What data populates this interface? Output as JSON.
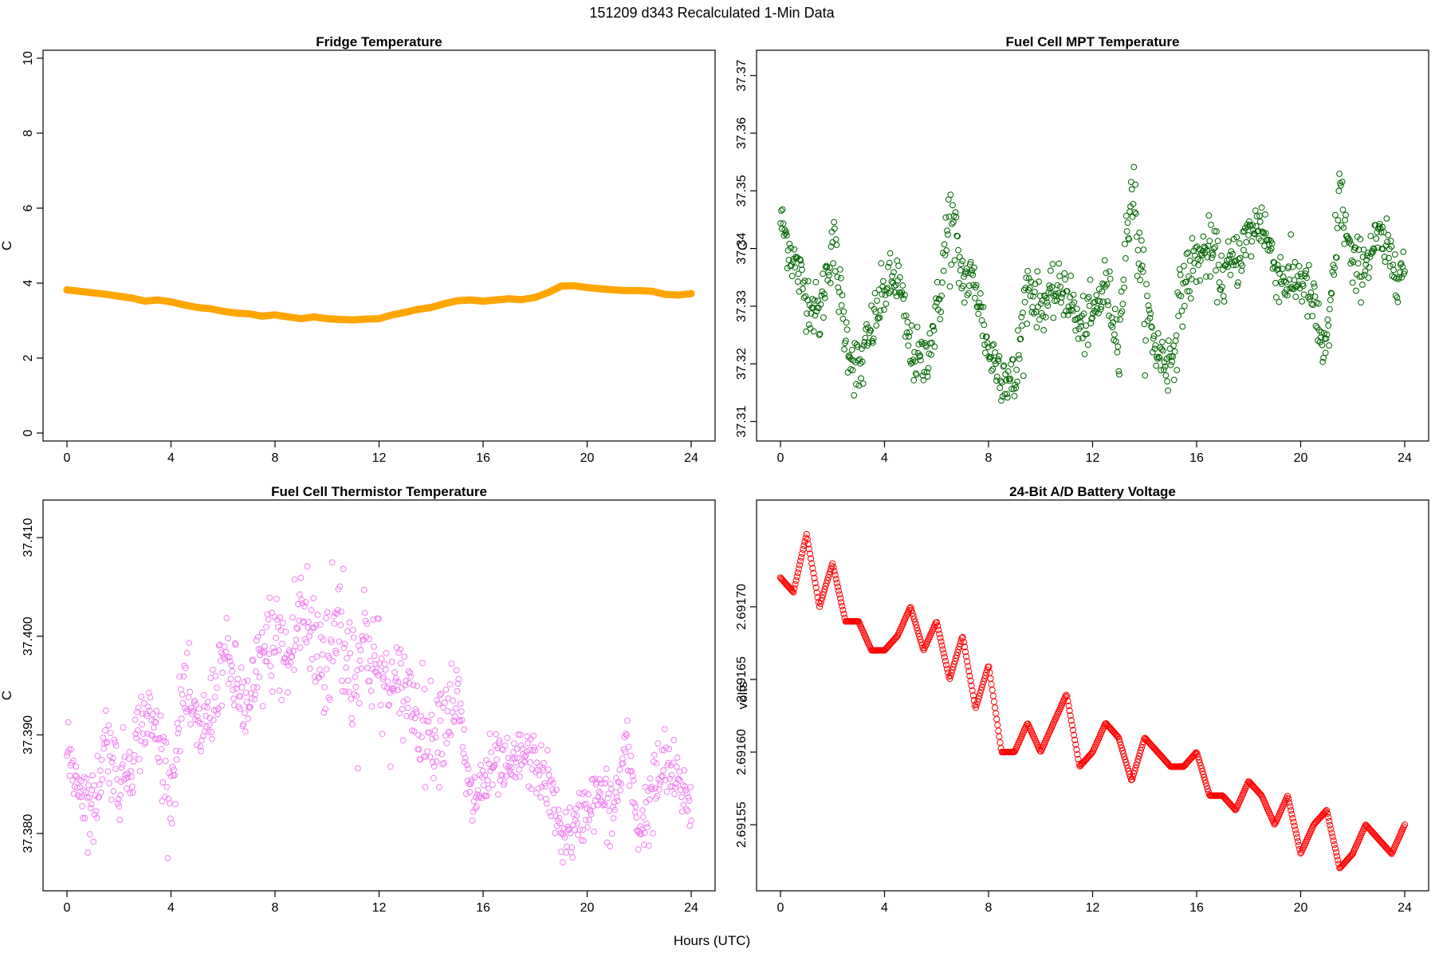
{
  "figure_title": "151209   d343   Recalculated 1-Min Data",
  "shared_xlabel": "Hours (UTC)",
  "chart_data": [
    {
      "type": "line",
      "title": "Fridge Temperature",
      "xlabel": "",
      "ylabel": "C",
      "xlim": [
        0,
        24
      ],
      "ylim": [
        0,
        10
      ],
      "xticks": [
        0,
        4,
        8,
        12,
        16,
        20,
        24
      ],
      "yticks": [
        0,
        2,
        4,
        6,
        8,
        10
      ],
      "ytick_labels": [
        "0",
        "2",
        "4",
        "6",
        "8",
        "10"
      ],
      "series": [
        {
          "color": "#FFA500",
          "marker": "thick-line",
          "x": [
            0.0,
            0.5,
            1.0,
            1.5,
            2.0,
            2.5,
            3.0,
            3.5,
            4.0,
            4.5,
            5.0,
            5.5,
            6.0,
            6.5,
            7.0,
            7.5,
            8.0,
            8.5,
            9.0,
            9.5,
            10.0,
            10.5,
            11.0,
            11.5,
            12.0,
            12.5,
            13.0,
            13.5,
            14.0,
            14.5,
            15.0,
            15.5,
            16.0,
            16.5,
            17.0,
            17.5,
            18.0,
            18.5,
            19.0,
            19.5,
            20.0,
            20.5,
            21.0,
            21.5,
            22.0,
            22.5,
            23.0,
            23.5,
            24.0
          ],
          "y": [
            3.82,
            3.78,
            3.74,
            3.7,
            3.65,
            3.6,
            3.52,
            3.55,
            3.5,
            3.42,
            3.35,
            3.32,
            3.25,
            3.2,
            3.18,
            3.12,
            3.15,
            3.1,
            3.05,
            3.1,
            3.05,
            3.03,
            3.02,
            3.04,
            3.05,
            3.15,
            3.22,
            3.3,
            3.35,
            3.45,
            3.53,
            3.55,
            3.52,
            3.55,
            3.58,
            3.56,
            3.62,
            3.75,
            3.92,
            3.93,
            3.88,
            3.85,
            3.82,
            3.8,
            3.8,
            3.78,
            3.7,
            3.68,
            3.72
          ]
        }
      ]
    },
    {
      "type": "scatter",
      "title": "Fuel Cell MPT Temperature",
      "xlabel": "",
      "ylabel": "C",
      "xlim": [
        0,
        24
      ],
      "ylim": [
        37.308,
        37.373
      ],
      "xticks": [
        0,
        4,
        8,
        12,
        16,
        20,
        24
      ],
      "yticks": [
        37.31,
        37.32,
        37.33,
        37.34,
        37.35,
        37.36,
        37.37
      ],
      "ytick_labels": [
        "37.31",
        "37.32",
        "37.33",
        "37.34",
        "37.35",
        "37.36",
        "37.37"
      ],
      "series": [
        {
          "color": "#006400",
          "marker": "open-circle",
          "x": [
            0.0,
            0.5,
            1.0,
            1.5,
            2.0,
            2.5,
            3.0,
            3.5,
            4.0,
            4.5,
            5.0,
            5.5,
            6.0,
            6.5,
            7.0,
            7.5,
            8.0,
            8.5,
            9.0,
            9.5,
            10.0,
            10.5,
            11.0,
            11.5,
            12.0,
            12.5,
            13.0,
            13.5,
            14.0,
            14.5,
            15.0,
            15.5,
            16.0,
            16.5,
            17.0,
            17.5,
            18.0,
            18.5,
            19.0,
            19.5,
            20.0,
            20.5,
            21.0,
            21.5,
            22.0,
            22.5,
            23.0,
            23.5,
            24.0
          ],
          "y": [
            37.345,
            37.338,
            37.332,
            37.328,
            37.342,
            37.325,
            37.318,
            37.326,
            37.333,
            37.335,
            37.322,
            37.32,
            37.328,
            37.345,
            37.335,
            37.334,
            37.322,
            37.319,
            37.316,
            37.334,
            37.33,
            37.332,
            37.333,
            37.326,
            37.328,
            37.334,
            37.324,
            37.352,
            37.33,
            37.322,
            37.32,
            37.334,
            37.338,
            37.34,
            37.335,
            37.338,
            37.342,
            37.345,
            37.337,
            37.334,
            37.335,
            37.33,
            37.32,
            37.35,
            37.336,
            37.338,
            37.342,
            37.338,
            37.336
          ],
          "spread": [
            0.004,
            0.005,
            0.005,
            0.005,
            0.006,
            0.005,
            0.006,
            0.005,
            0.005,
            0.005,
            0.005,
            0.005,
            0.005,
            0.01,
            0.005,
            0.005,
            0.005,
            0.005,
            0.006,
            0.006,
            0.004,
            0.004,
            0.005,
            0.005,
            0.005,
            0.005,
            0.005,
            0.007,
            0.007,
            0.005,
            0.006,
            0.006,
            0.005,
            0.005,
            0.005,
            0.005,
            0.005,
            0.005,
            0.005,
            0.005,
            0.005,
            0.005,
            0.007,
            0.006,
            0.005,
            0.005,
            0.004,
            0.005,
            0.005
          ]
        }
      ]
    },
    {
      "type": "scatter",
      "title": "Fuel Cell Thermistor Temperature",
      "xlabel": "",
      "ylabel": "C",
      "xlim": [
        0,
        24
      ],
      "ylim": [
        37.375,
        37.413
      ],
      "xticks": [
        0,
        4,
        8,
        12,
        16,
        20,
        24
      ],
      "yticks": [
        37.38,
        37.39,
        37.4,
        37.41
      ],
      "ytick_labels": [
        "37.380",
        "37.390",
        "37.400",
        "37.410"
      ],
      "series": [
        {
          "color": "#EE82EE",
          "marker": "open-circle",
          "x": [
            0.0,
            0.5,
            1.0,
            1.5,
            2.0,
            2.5,
            3.0,
            3.5,
            4.0,
            4.5,
            5.0,
            5.5,
            6.0,
            6.5,
            7.0,
            7.5,
            8.0,
            8.5,
            9.0,
            9.5,
            10.0,
            10.5,
            11.0,
            11.5,
            12.0,
            12.5,
            13.0,
            13.5,
            14.0,
            14.5,
            15.0,
            15.5,
            16.0,
            16.5,
            17.0,
            17.5,
            18.0,
            18.5,
            19.0,
            19.5,
            20.0,
            20.5,
            21.0,
            21.5,
            22.0,
            22.5,
            23.0,
            23.5,
            24.0
          ],
          "y": [
            37.388,
            37.385,
            37.382,
            37.39,
            37.385,
            37.388,
            37.392,
            37.39,
            37.384,
            37.395,
            37.39,
            37.392,
            37.398,
            37.395,
            37.392,
            37.398,
            37.4,
            37.397,
            37.403,
            37.399,
            37.398,
            37.402,
            37.396,
            37.4,
            37.396,
            37.394,
            37.395,
            37.392,
            37.39,
            37.392,
            37.394,
            37.383,
            37.385,
            37.387,
            37.386,
            37.388,
            37.387,
            37.385,
            37.38,
            37.38,
            37.383,
            37.384,
            37.382,
            37.389,
            37.38,
            37.384,
            37.387,
            37.385,
            37.383
          ],
          "spread": [
            0.003,
            0.003,
            0.004,
            0.004,
            0.004,
            0.004,
            0.004,
            0.004,
            0.004,
            0.004,
            0.004,
            0.004,
            0.004,
            0.004,
            0.005,
            0.005,
            0.005,
            0.006,
            0.007,
            0.007,
            0.007,
            0.008,
            0.008,
            0.007,
            0.006,
            0.005,
            0.005,
            0.005,
            0.005,
            0.005,
            0.004,
            0.004,
            0.004,
            0.003,
            0.003,
            0.003,
            0.003,
            0.003,
            0.003,
            0.003,
            0.003,
            0.003,
            0.004,
            0.003,
            0.003,
            0.004,
            0.004,
            0.003,
            0.003
          ]
        }
      ]
    },
    {
      "type": "scatter",
      "title": "24-Bit A/D Battery Voltage",
      "xlabel": "",
      "ylabel": "volts",
      "xlim": [
        0,
        24
      ],
      "ylim": [
        2.69151,
        2.691768
      ],
      "xticks": [
        0,
        4,
        8,
        12,
        16,
        20,
        24
      ],
      "yticks": [
        2.69155,
        2.6916,
        2.69165,
        2.6917
      ],
      "ytick_labels": [
        "2.69155",
        "2.69160",
        "2.69165",
        "2.69170"
      ],
      "series": [
        {
          "color": "#FF0000",
          "marker": "open-circle",
          "x": [
            0.0,
            0.5,
            1.0,
            1.5,
            2.0,
            2.5,
            3.0,
            3.5,
            4.0,
            4.5,
            5.0,
            5.5,
            6.0,
            6.5,
            7.0,
            7.5,
            8.0,
            8.5,
            9.0,
            9.5,
            10.0,
            10.5,
            11.0,
            11.5,
            12.0,
            12.5,
            13.0,
            13.5,
            14.0,
            14.5,
            15.0,
            15.5,
            16.0,
            16.5,
            17.0,
            17.5,
            18.0,
            18.5,
            19.0,
            19.5,
            20.0,
            20.5,
            21.0,
            21.5,
            22.0,
            22.5,
            23.0,
            23.5,
            24.0
          ],
          "y": [
            2.69172,
            2.69171,
            2.69175,
            2.6917,
            2.69173,
            2.69169,
            2.69169,
            2.69167,
            2.69167,
            2.69168,
            2.6917,
            2.69167,
            2.69169,
            2.69165,
            2.69168,
            2.69163,
            2.69166,
            2.6916,
            2.6916,
            2.69162,
            2.6916,
            2.69162,
            2.69164,
            2.69159,
            2.6916,
            2.69162,
            2.69161,
            2.69158,
            2.69161,
            2.6916,
            2.69159,
            2.69159,
            2.6916,
            2.69157,
            2.69157,
            2.69156,
            2.69158,
            2.69157,
            2.69155,
            2.69157,
            2.69153,
            2.69155,
            2.69156,
            2.69152,
            2.69153,
            2.69155,
            2.69154,
            2.69153,
            2.69155
          ]
        }
      ]
    }
  ]
}
